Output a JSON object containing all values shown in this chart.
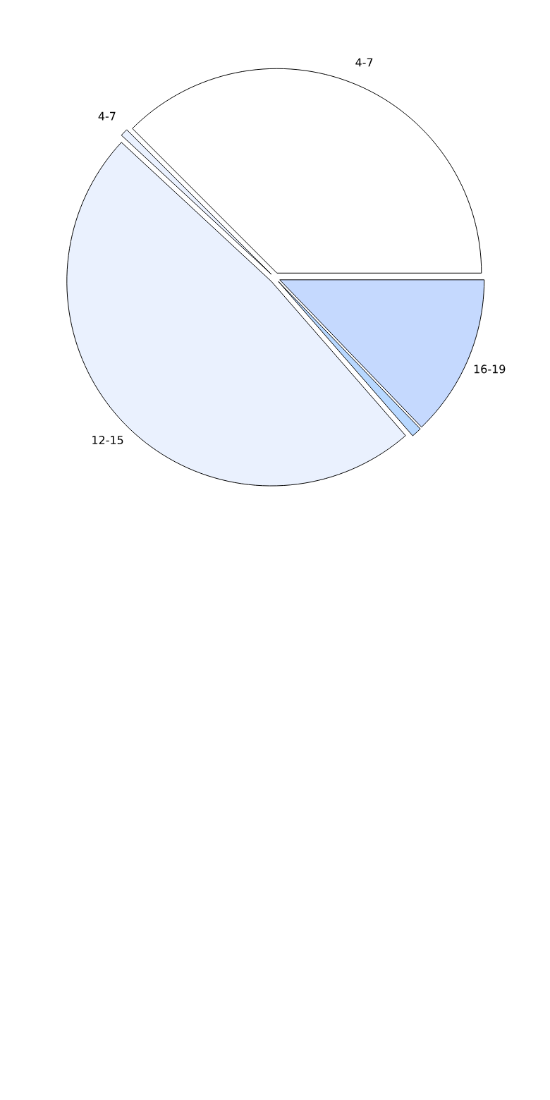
{
  "chart_data": {
    "type": "pie",
    "categories": [
      "4-7",
      "4-7",
      "12-15",
      null,
      "16-19"
    ],
    "values": [
      37.5,
      0.6,
      48.3,
      0.8,
      12.8
    ],
    "colors": [
      "#ffffff",
      "#eaf1fe",
      "#eaf1fe",
      "#b8d8ff",
      "#c5d9fe"
    ]
  }
}
